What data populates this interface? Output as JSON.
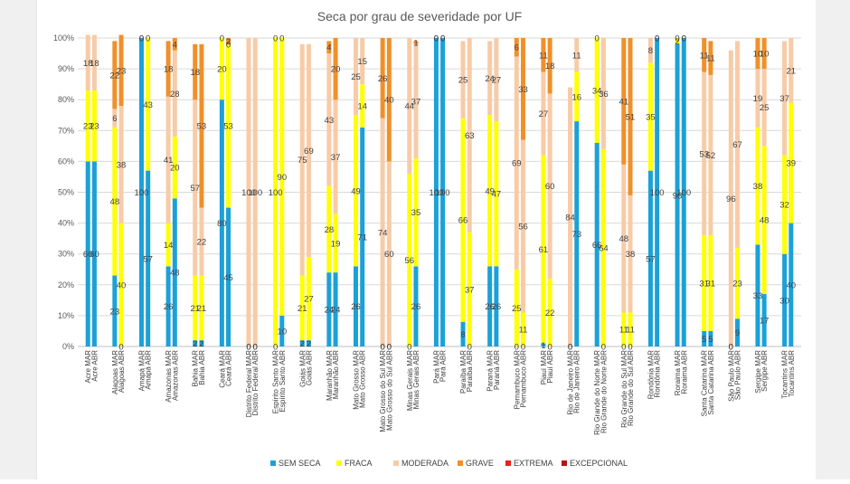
{
  "chart_data": {
    "type": "bar",
    "stacked": "percent",
    "title": "Seca por grau de severidade por UF",
    "ylim": [
      0,
      100
    ],
    "yticks": [
      "0%",
      "10%",
      "20%",
      "30%",
      "40%",
      "50%",
      "60%",
      "70%",
      "80%",
      "90%",
      "100%"
    ],
    "grid": true,
    "legend_position": "bottom",
    "categories": [
      "Acre MAR",
      "Acre ABR",
      "Alagoas MAR",
      "Alagoas ABR",
      "Amapá MAR",
      "Amapá ABR",
      "Amazonas MAR",
      "Amazonas ABR",
      "Bahia MAR",
      "Bahia ABR",
      "Ceará MAR",
      "Ceará ABR",
      "Distrito Federal MAR",
      "Distrito Federal ABR",
      "Espírito Santo MAR",
      "Espírito Santo ABR",
      "Goiás MAR",
      "Goiás ABR",
      "Maranhão MAR",
      "Maranhão ABR",
      "Mato Grosso MAR",
      "Mato Grosso ABR",
      "Mato Grosso do Sul MAR",
      "Mato Grosso do Sul ABR",
      "Minas Gerais MAR",
      "Minas Gerais ABR",
      "Pará MAR",
      "Pará ABR",
      "Paraíba MAR",
      "Paraíba ABR",
      "Paraná MAR",
      "Paraná ABR",
      "Pernambuco MAR",
      "Pernambuco ABR",
      "Piauí MAR",
      "Piauí ABR",
      "Rio de Janeiro MAR",
      "Rio de Janeiro ABR",
      "Rio Grande do Norte MAR",
      "Rio Grande do Norte ABR",
      "Rio Grande do Sul MAR",
      "Rio Grande do Sul ABR",
      "Rondônia MAR",
      "Rondônia ABR",
      "Roraima MAR",
      "Roraima ABR",
      "Santa Catarina MAR",
      "Santa Catarina ABR",
      "São Paulo MAR",
      "São Paulo ABR",
      "Sergipe MAR",
      "Sergipe ABR",
      "Tocantins MAR",
      "Tocantins ABR"
    ],
    "series": [
      {
        "name": "SEM SECA",
        "color": "#1ba1d8",
        "values": [
          60,
          60,
          23,
          0,
          100,
          57,
          26,
          48,
          2,
          2,
          80,
          45,
          0,
          0,
          0,
          10,
          2,
          2,
          24,
          24,
          26,
          71,
          0,
          0,
          0,
          26,
          100,
          100,
          8,
          0,
          26,
          26,
          0,
          0,
          1,
          0,
          0,
          73,
          66,
          0,
          0,
          0,
          57,
          100,
          98,
          100,
          5,
          5,
          0,
          9,
          33,
          17,
          30,
          40
        ]
      },
      {
        "name": "FRACA",
        "color": "#ffff00",
        "values": [
          23,
          23,
          48,
          40,
          0,
          43,
          14,
          20,
          21,
          21,
          20,
          53,
          0,
          0,
          100,
          90,
          21,
          27,
          28,
          19,
          49,
          14,
          0,
          0,
          56,
          35,
          0,
          0,
          66,
          37,
          49,
          47,
          25,
          11,
          61,
          22,
          0,
          16,
          34,
          64,
          11,
          11,
          35,
          0,
          2,
          0,
          31,
          31,
          0,
          23,
          38,
          48,
          32,
          39
        ]
      },
      {
        "name": "MODERADA",
        "color": "#f8cba7",
        "values": [
          18,
          18,
          6,
          38,
          0,
          0,
          41,
          28,
          57,
          22,
          0,
          0,
          100,
          100,
          0,
          0,
          75,
          69,
          43,
          37,
          25,
          15,
          74,
          60,
          44,
          37,
          0,
          0,
          25,
          63,
          24,
          27,
          69,
          56,
          27,
          60,
          84,
          11,
          0,
          36,
          48,
          38,
          8,
          0,
          0,
          0,
          53,
          52,
          96,
          67,
          19,
          25,
          37,
          21
        ]
      },
      {
        "name": "GRAVE",
        "color": "#f0902a",
        "values": [
          0,
          0,
          22,
          23,
          0,
          0,
          18,
          4,
          18,
          53,
          0,
          2,
          0,
          0,
          0,
          0,
          0,
          0,
          4,
          20,
          0,
          0,
          26,
          40,
          0,
          1,
          0,
          0,
          0,
          0,
          0,
          0,
          6,
          33,
          11,
          18,
          0,
          0,
          0,
          0,
          41,
          51,
          0,
          0,
          0,
          0,
          11,
          11,
          0,
          0,
          10,
          10,
          0,
          0
        ]
      },
      {
        "name": "EXTREMA",
        "color": "#e8211f",
        "values": [
          0,
          0,
          0,
          0,
          0,
          0,
          0,
          0,
          0,
          0,
          0,
          0,
          0,
          0,
          0,
          0,
          0,
          0,
          0,
          0,
          0,
          0,
          0,
          0,
          0,
          0,
          0,
          0,
          0,
          0,
          0,
          0,
          0,
          0,
          0,
          0,
          0,
          0,
          0,
          0,
          0,
          0,
          0,
          0,
          0,
          0,
          0,
          0,
          0,
          0,
          0,
          0,
          0,
          0
        ]
      },
      {
        "name": "EXCEPCIONAL",
        "color": "#b01717",
        "values": [
          0,
          0,
          0,
          0,
          0,
          0,
          0,
          0,
          0,
          0,
          0,
          0,
          0,
          0,
          0,
          0,
          0,
          0,
          0,
          0,
          0,
          0,
          0,
          0,
          0,
          0,
          0,
          0,
          0,
          0,
          0,
          0,
          0,
          0,
          0,
          0,
          0,
          0,
          0,
          0,
          0,
          0,
          0,
          0,
          0,
          0,
          0,
          0,
          0,
          0,
          0,
          0,
          0,
          0
        ]
      }
    ]
  }
}
